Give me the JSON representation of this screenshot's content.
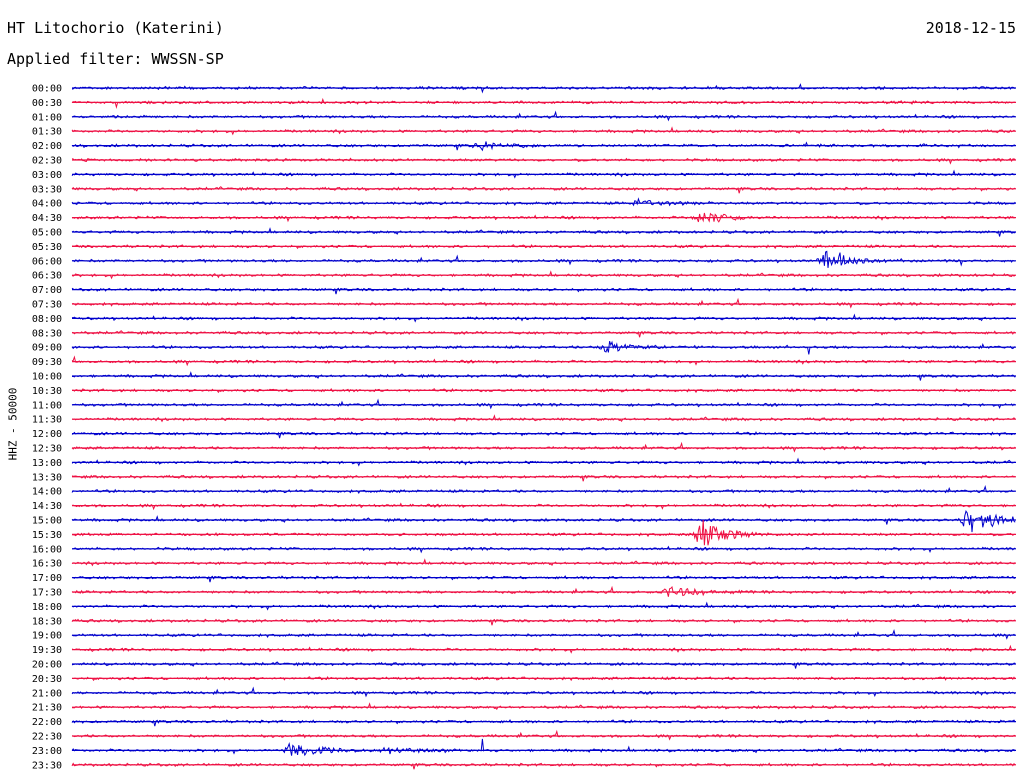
{
  "header": {
    "station": "HT Litochorio (Katerini)",
    "date": "2018-12-15",
    "filter": "Applied filter: WWSSN-SP"
  },
  "chart_data": {
    "type": "line",
    "title": "HT Litochorio (Katerini)",
    "subtitle": "Applied filter: WWSSN-SP",
    "ylabel": "HHZ - 50000",
    "xlabel": "",
    "row_labels": [
      "00:00",
      "00:30",
      "01:00",
      "01:30",
      "02:00",
      "02:30",
      "03:00",
      "03:30",
      "04:00",
      "04:30",
      "05:00",
      "05:30",
      "06:00",
      "06:30",
      "07:00",
      "07:30",
      "08:00",
      "08:30",
      "09:00",
      "09:30",
      "10:00",
      "10:30",
      "11:00",
      "11:30",
      "12:00",
      "12:30",
      "13:00",
      "13:30",
      "14:00",
      "14:30",
      "15:00",
      "15:30",
      "16:00",
      "16:30",
      "17:00",
      "17:30",
      "18:00",
      "18:30",
      "19:00",
      "19:30",
      "20:00",
      "20:30",
      "21:00",
      "21:30",
      "22:00",
      "22:30",
      "23:00",
      "23:30"
    ],
    "colors": [
      "#0000cc",
      "#ee1144"
    ],
    "grid": false,
    "notable_events": [
      {
        "row": "02:00",
        "minute": 13,
        "amplitude": 0.4
      },
      {
        "row": "04:00",
        "minute": 18,
        "amplitude": 0.3
      },
      {
        "row": "04:30",
        "minute": 20,
        "amplitude": 0.5
      },
      {
        "row": "06:00",
        "minute": 24,
        "amplitude": 0.7
      },
      {
        "row": "09:00",
        "minute": 17,
        "amplitude": 0.5
      },
      {
        "row": "15:00",
        "minute": 28.5,
        "amplitude": 1.3
      },
      {
        "row": "15:30",
        "minute": 20,
        "amplitude": 1.1
      },
      {
        "row": "17:30",
        "minute": 19,
        "amplitude": 0.5
      },
      {
        "row": "23:00",
        "minute": 7,
        "amplitude": 0.6
      },
      {
        "row": "23:00",
        "minute": 10,
        "amplitude": 0.3
      }
    ]
  }
}
